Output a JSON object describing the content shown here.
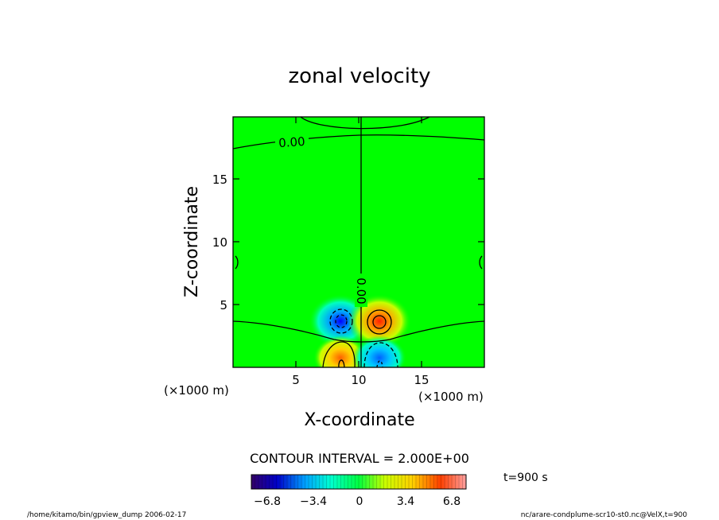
{
  "chart_data": {
    "type": "heatmap",
    "title": "zonal velocity",
    "xlabel": "X-coordinate",
    "ylabel": "Z-coordinate",
    "x_unit": "(×1000 m)",
    "z_unit": "(×1000 m)",
    "xlim": [
      0,
      20
    ],
    "ylim": [
      0,
      20
    ],
    "x_ticks": [
      "5",
      "10",
      "15"
    ],
    "y_ticks": [
      "5",
      "10",
      "15"
    ],
    "contour_interval": "CONTOUR INTERVAL = 2.000E+00",
    "contour_labels": [
      "0.00",
      "0.00"
    ],
    "time_label": "t=900 s",
    "colorbar": {
      "tick_labels": [
        "−6.8",
        "−3.4",
        "0",
        "3.4",
        "6.8"
      ],
      "tick_values": [
        -6.8,
        -3.4,
        0,
        3.4,
        6.8
      ],
      "range": [
        -8.5,
        8.5
      ],
      "colors": [
        "#330066",
        "#0000c8",
        "#00a0ff",
        "#00ffd0",
        "#00ff40",
        "#c8ff00",
        "#ffd000",
        "#ff4000",
        "#ffa0a0"
      ]
    },
    "features": [
      {
        "name": "negative-lobe-upper-left",
        "x": 8.6,
        "z": 3.6,
        "value": -6.0
      },
      {
        "name": "positive-lobe-upper-right",
        "x": 11.4,
        "z": 3.6,
        "value": 6.0
      },
      {
        "name": "positive-lobe-lower-left",
        "x": 8.6,
        "z": 0.8,
        "value": 4.5
      },
      {
        "name": "negative-lobe-lower-right",
        "x": 11.4,
        "z": 0.8,
        "value": -4.5
      }
    ]
  },
  "footer": {
    "left": "/home/kitamo/bin/gpview_dump  2006-02-17",
    "right": "nc/arare-condplume-scr10-st0.nc@VelX,t=900"
  },
  "colors": {
    "field_background": "#00ff00"
  }
}
